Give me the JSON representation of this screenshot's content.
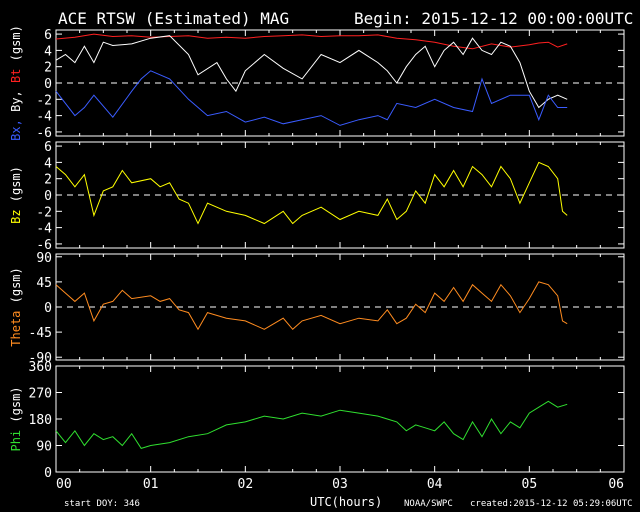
{
  "header": {
    "title": "ACE RTSW (Estimated) MAG",
    "begin": "Begin: 2015-12-12 00:00:00UTC"
  },
  "footer": {
    "start_doy": "start DOY:  346",
    "xlabel": "UTC(hours)",
    "source": "NOAA/SWPC",
    "created": "created:2015-12-12 05:29:06UTC"
  },
  "chart_data": {
    "type": "line",
    "x_unit": "hours UTC",
    "xlim": [
      0,
      6
    ],
    "x_ticks": [
      "00",
      "01",
      "02",
      "03",
      "04",
      "05",
      "06"
    ],
    "panels": [
      {
        "ylabel_parts": [
          {
            "text": "Bx,",
            "color": "#3a5cff"
          },
          {
            "text": " By,",
            "color": "#ffffff"
          },
          {
            "text": " Bt",
            "color": "#ff2020"
          },
          {
            "text": " (gsm)",
            "color": "#ffffff"
          }
        ],
        "ylim": [
          -6.5,
          6.5
        ],
        "y_ticks": [
          "6",
          "4",
          "2",
          "0",
          "-2",
          "-4",
          "-6"
        ],
        "y_tick_values": [
          6,
          4,
          2,
          0,
          -2,
          -4,
          -6
        ],
        "zero_line": 0,
        "series": [
          {
            "color": "#ff2020",
            "x": [
              0,
              0.2,
              0.4,
              0.6,
              0.8,
              1.0,
              1.2,
              1.4,
              1.6,
              1.8,
              2.0,
              2.2,
              2.4,
              2.6,
              2.8,
              3.0,
              3.2,
              3.4,
              3.6,
              3.8,
              4.0,
              4.2,
              4.4,
              4.6,
              4.8,
              5.0,
              5.1,
              5.2,
              5.3,
              5.4
            ],
            "y": [
              5.4,
              5.6,
              6.0,
              5.7,
              5.8,
              5.6,
              5.7,
              5.8,
              5.5,
              5.6,
              5.5,
              5.7,
              5.8,
              5.9,
              5.7,
              5.8,
              5.8,
              5.9,
              5.5,
              5.3,
              5.0,
              4.5,
              4.2,
              4.8,
              4.4,
              4.7,
              4.9,
              5.0,
              4.4,
              4.8
            ]
          },
          {
            "color": "#ffffff",
            "x": [
              0,
              0.1,
              0.2,
              0.3,
              0.4,
              0.5,
              0.6,
              0.8,
              1.0,
              1.2,
              1.4,
              1.5,
              1.7,
              1.8,
              1.9,
              2.0,
              2.2,
              2.4,
              2.6,
              2.8,
              3.0,
              3.2,
              3.4,
              3.5,
              3.6,
              3.7,
              3.8,
              3.9,
              4.0,
              4.1,
              4.2,
              4.3,
              4.4,
              4.5,
              4.6,
              4.7,
              4.8,
              4.9,
              5.0,
              5.1,
              5.2,
              5.3,
              5.4
            ],
            "y": [
              2.8,
              3.5,
              2.5,
              4.5,
              2.5,
              5.0,
              4.6,
              4.8,
              5.5,
              5.8,
              3.5,
              1.0,
              2.5,
              0.5,
              -1.0,
              1.5,
              3.5,
              1.8,
              0.5,
              3.5,
              2.5,
              4.0,
              2.5,
              1.5,
              0,
              2.0,
              3.5,
              4.5,
              2.0,
              4.0,
              5.0,
              3.5,
              5.5,
              4.0,
              3.5,
              5.0,
              4.5,
              2.5,
              -1.0,
              -3.0,
              -2.0,
              -1.5,
              -2.0
            ]
          },
          {
            "color": "#3a5cff",
            "x": [
              0,
              0.2,
              0.3,
              0.4,
              0.6,
              0.8,
              0.9,
              1.0,
              1.2,
              1.4,
              1.6,
              1.8,
              2.0,
              2.2,
              2.4,
              2.6,
              2.8,
              3.0,
              3.2,
              3.4,
              3.5,
              3.6,
              3.8,
              4.0,
              4.2,
              4.4,
              4.5,
              4.6,
              4.8,
              5.0,
              5.1,
              5.2,
              5.3,
              5.4
            ],
            "y": [
              -1.0,
              -4.0,
              -3.0,
              -1.5,
              -4.2,
              -1.0,
              0.5,
              1.5,
              0.5,
              -2.0,
              -4.0,
              -3.5,
              -4.8,
              -4.2,
              -5.0,
              -4.5,
              -4.0,
              -5.2,
              -4.5,
              -4.0,
              -4.5,
              -2.5,
              -3.0,
              -2.0,
              -3.0,
              -3.5,
              0.5,
              -2.5,
              -1.5,
              -1.5,
              -4.5,
              -1.5,
              -3.0,
              -3.0
            ]
          }
        ]
      },
      {
        "ylabel_parts": [
          {
            "text": "Bz",
            "color": "#ffff00"
          },
          {
            "text": " (gsm)",
            "color": "#ffffff"
          }
        ],
        "ylim": [
          -6.5,
          6.5
        ],
        "y_ticks": [
          "6",
          "4",
          "2",
          "0",
          "-2",
          "-4",
          "-6"
        ],
        "y_tick_values": [
          6,
          4,
          2,
          0,
          -2,
          -4,
          -6
        ],
        "zero_line": 0,
        "series": [
          {
            "color": "#ffff00",
            "x": [
              0,
              0.1,
              0.2,
              0.3,
              0.4,
              0.5,
              0.6,
              0.7,
              0.8,
              1.0,
              1.1,
              1.2,
              1.3,
              1.4,
              1.5,
              1.6,
              1.8,
              2.0,
              2.2,
              2.4,
              2.5,
              2.6,
              2.8,
              3.0,
              3.2,
              3.4,
              3.5,
              3.6,
              3.7,
              3.8,
              3.9,
              4.0,
              4.1,
              4.2,
              4.3,
              4.4,
              4.5,
              4.6,
              4.7,
              4.8,
              4.9,
              5.0,
              5.1,
              5.2,
              5.3,
              5.35,
              5.4
            ],
            "y": [
              3.5,
              2.5,
              1.0,
              2.5,
              -2.5,
              0.5,
              1.0,
              3.0,
              1.5,
              2.0,
              1.0,
              1.5,
              -0.5,
              -1.0,
              -3.5,
              -1.0,
              -2.0,
              -2.5,
              -3.5,
              -2.0,
              -3.5,
              -2.5,
              -1.5,
              -3.0,
              -2.0,
              -2.5,
              -0.5,
              -3.0,
              -2.0,
              0.5,
              -1.0,
              2.5,
              1.0,
              3.0,
              1.0,
              3.5,
              2.5,
              1.0,
              3.5,
              2.0,
              -1.0,
              1.5,
              4.0,
              3.5,
              2.0,
              -2.0,
              -2.5
            ]
          }
        ]
      },
      {
        "ylabel_parts": [
          {
            "text": "Theta",
            "color": "#ff8c20"
          },
          {
            "text": " (gsm)",
            "color": "#ffffff"
          }
        ],
        "ylim": [
          -95,
          95
        ],
        "y_ticks": [
          "90",
          "45",
          "0",
          "-45",
          "-90"
        ],
        "y_tick_values": [
          90,
          45,
          0,
          -45,
          -90
        ],
        "zero_line": 0,
        "series": [
          {
            "color": "#ff8c20",
            "x": [
              0,
              0.1,
              0.2,
              0.3,
              0.4,
              0.5,
              0.6,
              0.7,
              0.8,
              1.0,
              1.1,
              1.2,
              1.3,
              1.4,
              1.5,
              1.6,
              1.8,
              2.0,
              2.2,
              2.4,
              2.5,
              2.6,
              2.8,
              3.0,
              3.2,
              3.4,
              3.5,
              3.6,
              3.7,
              3.8,
              3.9,
              4.0,
              4.1,
              4.2,
              4.3,
              4.4,
              4.5,
              4.6,
              4.7,
              4.8,
              4.9,
              5.0,
              5.1,
              5.2,
              5.3,
              5.35,
              5.4
            ],
            "y": [
              40,
              25,
              10,
              25,
              -25,
              5,
              10,
              30,
              15,
              20,
              10,
              15,
              -5,
              -10,
              -40,
              -10,
              -20,
              -25,
              -40,
              -20,
              -40,
              -25,
              -15,
              -30,
              -20,
              -25,
              -5,
              -30,
              -20,
              5,
              -10,
              25,
              10,
              35,
              10,
              40,
              25,
              10,
              40,
              20,
              -10,
              15,
              45,
              40,
              20,
              -25,
              -30
            ]
          }
        ]
      },
      {
        "ylabel_parts": [
          {
            "text": "Phi",
            "color": "#30e030"
          },
          {
            "text": " (gsm)",
            "color": "#ffffff"
          }
        ],
        "ylim": [
          0,
          360
        ],
        "y_ticks": [
          "360",
          "270",
          "180",
          "90",
          "0"
        ],
        "y_tick_values": [
          360,
          270,
          180,
          90,
          0
        ],
        "zero_line": null,
        "series": [
          {
            "color": "#30e030",
            "x": [
              0,
              0.1,
              0.2,
              0.3,
              0.4,
              0.5,
              0.6,
              0.7,
              0.8,
              0.9,
              1.0,
              1.2,
              1.4,
              1.6,
              1.8,
              2.0,
              2.2,
              2.4,
              2.6,
              2.8,
              3.0,
              3.2,
              3.4,
              3.5,
              3.6,
              3.7,
              3.8,
              3.9,
              4.0,
              4.1,
              4.2,
              4.3,
              4.4,
              4.5,
              4.6,
              4.7,
              4.8,
              4.9,
              5.0,
              5.1,
              5.2,
              5.3,
              5.4
            ],
            "y": [
              140,
              100,
              140,
              90,
              130,
              110,
              120,
              90,
              130,
              80,
              90,
              100,
              120,
              130,
              160,
              170,
              190,
              180,
              200,
              190,
              210,
              200,
              190,
              180,
              170,
              140,
              160,
              150,
              140,
              170,
              130,
              110,
              170,
              120,
              180,
              130,
              170,
              150,
              200,
              220,
              240,
              220,
              230
            ]
          }
        ]
      }
    ]
  }
}
